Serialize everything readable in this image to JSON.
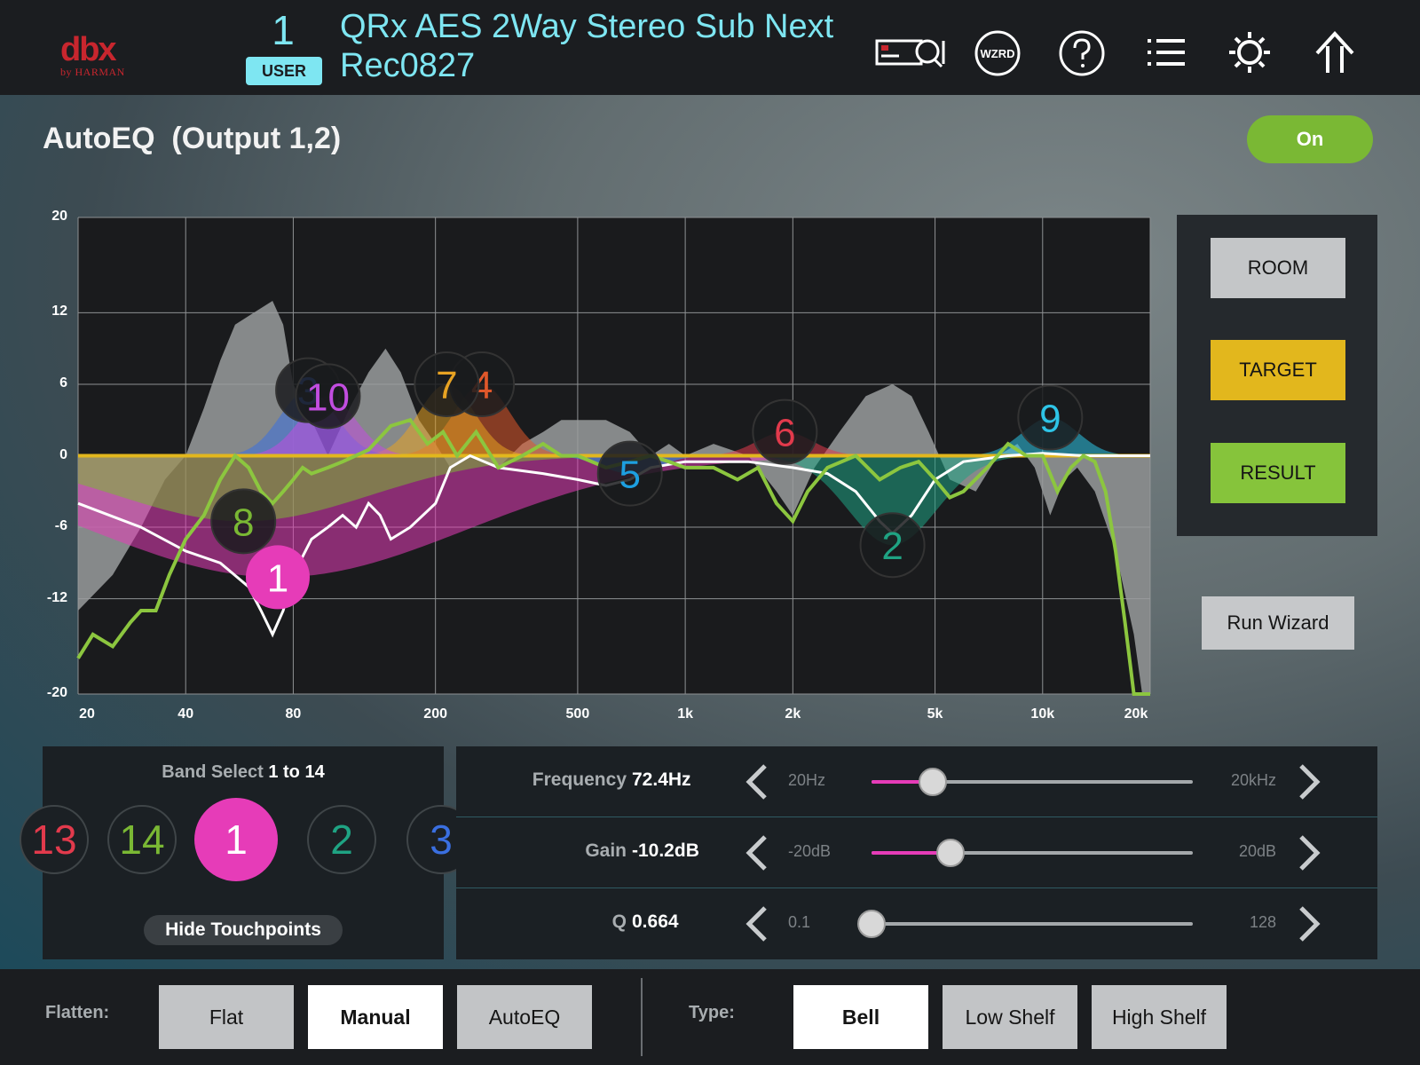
{
  "header": {
    "logo_text": "dbx",
    "logo_subtext": "by HARMAN",
    "preset_number": "1",
    "preset_bank": "USER",
    "preset_name_line1": "QRx AES 2Way Stereo Sub Next",
    "preset_name_line2": "Rec0827",
    "wizard_icon_text": "WZRD",
    "icons": [
      "device-icon",
      "wizard-icon",
      "help-icon",
      "list-icon",
      "settings-icon",
      "home-icon"
    ]
  },
  "module": {
    "title": "AutoEQ  (Output 1,2)",
    "toggle_label": "On"
  },
  "graph": {
    "y_labels": [
      "20",
      "12",
      "6",
      "0",
      "-6",
      "-12",
      "-20"
    ],
    "x_labels": [
      "20",
      "40",
      "80",
      "200",
      "500",
      "1k",
      "2k",
      "5k",
      "10k",
      "20k"
    ]
  },
  "chart_data": {
    "type": "line",
    "x_scale": "log",
    "xlim": [
      20,
      20000
    ],
    "ylim": [
      -20,
      20
    ],
    "y_ticks": [
      20,
      12,
      6,
      0,
      -6,
      -12,
      -20
    ],
    "x_ticks": [
      20,
      40,
      80,
      200,
      500,
      1000,
      2000,
      5000,
      10000,
      20000
    ],
    "target_level_db": 0,
    "bands": [
      {
        "id": 1,
        "freq": 72.4,
        "gain": -10.2,
        "color": "#e63cb8",
        "active": true
      },
      {
        "id": 2,
        "freq": 3800,
        "gain": -7.5,
        "color": "#1fa383"
      },
      {
        "id": 3,
        "freq": 88,
        "gain": 5.5,
        "color": "#3a6fe0"
      },
      {
        "id": 4,
        "freq": 270,
        "gain": 6,
        "color": "#e0572a"
      },
      {
        "id": 5,
        "freq": 700,
        "gain": -1.5,
        "color": "#1d9fe0"
      },
      {
        "id": 6,
        "freq": 1900,
        "gain": 2,
        "color": "#e23a4c"
      },
      {
        "id": 7,
        "freq": 215,
        "gain": 6,
        "color": "#e8a323"
      },
      {
        "id": 8,
        "freq": 58,
        "gain": -5.5,
        "color": "#7ab834"
      },
      {
        "id": 9,
        "freq": 10500,
        "gain": 3.2,
        "color": "#2ec4e6"
      },
      {
        "id": 10,
        "freq": 100,
        "gain": 5,
        "color": "#c24de0"
      }
    ],
    "series": [
      {
        "role": "room",
        "color": "#9a9c9e",
        "points": [
          [
            20,
            -13
          ],
          [
            25,
            -10
          ],
          [
            30,
            -6
          ],
          [
            35,
            -2
          ],
          [
            40,
            0
          ],
          [
            45,
            4
          ],
          [
            50,
            8
          ],
          [
            55,
            11
          ],
          [
            62,
            12
          ],
          [
            70,
            13
          ],
          [
            75,
            11
          ],
          [
            80,
            6
          ],
          [
            90,
            3
          ],
          [
            100,
            0
          ],
          [
            115,
            4
          ],
          [
            130,
            7
          ],
          [
            145,
            9
          ],
          [
            160,
            7
          ],
          [
            180,
            3
          ],
          [
            200,
            1
          ],
          [
            220,
            -1
          ],
          [
            250,
            0
          ],
          [
            300,
            -1
          ],
          [
            350,
            1
          ],
          [
            400,
            2
          ],
          [
            450,
            3
          ],
          [
            500,
            3
          ],
          [
            600,
            3
          ],
          [
            700,
            2
          ],
          [
            800,
            0
          ],
          [
            900,
            1
          ],
          [
            1000,
            0
          ],
          [
            1200,
            1
          ],
          [
            1500,
            0
          ],
          [
            1800,
            -3
          ],
          [
            2000,
            -5
          ],
          [
            2300,
            -1
          ],
          [
            2700,
            2
          ],
          [
            3200,
            5
          ],
          [
            3800,
            6
          ],
          [
            4300,
            5
          ],
          [
            4800,
            2
          ],
          [
            5500,
            -2
          ],
          [
            6500,
            -3
          ],
          [
            7500,
            0
          ],
          [
            8500,
            1
          ],
          [
            9500,
            -1
          ],
          [
            10500,
            -5
          ],
          [
            11500,
            -2
          ],
          [
            12500,
            -1
          ],
          [
            14000,
            -3
          ],
          [
            16000,
            -8
          ],
          [
            18000,
            -15
          ],
          [
            19000,
            -20
          ],
          [
            20000,
            -20
          ]
        ]
      },
      {
        "role": "target",
        "color": "#ffffff",
        "points": [
          [
            20,
            -4
          ],
          [
            30,
            -6
          ],
          [
            40,
            -8
          ],
          [
            50,
            -9
          ],
          [
            60,
            -11
          ],
          [
            65,
            -13
          ],
          [
            70,
            -15
          ],
          [
            75,
            -13
          ],
          [
            80,
            -10
          ],
          [
            90,
            -7
          ],
          [
            100,
            -6
          ],
          [
            110,
            -5
          ],
          [
            120,
            -6
          ],
          [
            130,
            -4
          ],
          [
            140,
            -5
          ],
          [
            150,
            -7
          ],
          [
            170,
            -6
          ],
          [
            200,
            -4
          ],
          [
            220,
            -1
          ],
          [
            250,
            0
          ],
          [
            300,
            -1
          ],
          [
            400,
            -1.5
          ],
          [
            500,
            -2
          ],
          [
            600,
            -2.5
          ],
          [
            700,
            -2
          ],
          [
            800,
            -1
          ],
          [
            1000,
            -0.5
          ],
          [
            1500,
            -0.5
          ],
          [
            2000,
            -1
          ],
          [
            2500,
            -1.5
          ],
          [
            3000,
            -3
          ],
          [
            3500,
            -5.5
          ],
          [
            3800,
            -6.5
          ],
          [
            4300,
            -5
          ],
          [
            5000,
            -2
          ],
          [
            6000,
            -0.5
          ],
          [
            8000,
            0
          ],
          [
            10000,
            0.2
          ],
          [
            13000,
            0
          ],
          [
            20000,
            0
          ]
        ]
      },
      {
        "role": "result",
        "color": "#8cc63f",
        "points": [
          [
            20,
            -17
          ],
          [
            22,
            -15
          ],
          [
            25,
            -16
          ],
          [
            28,
            -14
          ],
          [
            30,
            -13
          ],
          [
            33,
            -13
          ],
          [
            36,
            -10
          ],
          [
            40,
            -7
          ],
          [
            45,
            -5
          ],
          [
            50,
            -2
          ],
          [
            55,
            0
          ],
          [
            60,
            -1
          ],
          [
            65,
            -3
          ],
          [
            70,
            -4
          ],
          [
            75,
            -3
          ],
          [
            80,
            -2
          ],
          [
            85,
            -1
          ],
          [
            90,
            -1.5
          ],
          [
            100,
            -1
          ],
          [
            110,
            -0.5
          ],
          [
            130,
            0.5
          ],
          [
            150,
            2.5
          ],
          [
            170,
            3
          ],
          [
            190,
            1
          ],
          [
            210,
            2
          ],
          [
            230,
            0
          ],
          [
            260,
            2
          ],
          [
            300,
            -1
          ],
          [
            350,
            0
          ],
          [
            400,
            1
          ],
          [
            450,
            0
          ],
          [
            500,
            0
          ],
          [
            600,
            -1
          ],
          [
            700,
            -0.5
          ],
          [
            800,
            0
          ],
          [
            900,
            -0.5
          ],
          [
            1000,
            -1
          ],
          [
            1200,
            -1
          ],
          [
            1400,
            -2
          ],
          [
            1600,
            -1
          ],
          [
            1800,
            -4
          ],
          [
            2000,
            -5.5
          ],
          [
            2200,
            -3
          ],
          [
            2500,
            -1
          ],
          [
            3000,
            0
          ],
          [
            3500,
            -2
          ],
          [
            4000,
            -1
          ],
          [
            4500,
            -0.5
          ],
          [
            5000,
            -2
          ],
          [
            5500,
            -3.5
          ],
          [
            6000,
            -3
          ],
          [
            7000,
            -1
          ],
          [
            8000,
            1
          ],
          [
            9000,
            0
          ],
          [
            10000,
            0
          ],
          [
            11000,
            -3
          ],
          [
            12000,
            -1
          ],
          [
            13000,
            0
          ],
          [
            14000,
            -0.5
          ],
          [
            15000,
            -3
          ],
          [
            16000,
            -8
          ],
          [
            17000,
            -14
          ],
          [
            18000,
            -20
          ],
          [
            19500,
            -20
          ],
          [
            20000,
            -20
          ]
        ]
      }
    ]
  },
  "views": {
    "room": "ROOM",
    "target": "TARGET",
    "result": "RESULT",
    "run_wizard": "Run Wizard"
  },
  "band_select": {
    "title_prefix": "Band Select ",
    "title_range": "1 to 14",
    "chips": [
      {
        "label": "13",
        "color": "#e23a4c"
      },
      {
        "label": "14",
        "color": "#7ab834"
      },
      {
        "label": "1",
        "color": "#ffffff"
      },
      {
        "label": "2",
        "color": "#1fa383"
      },
      {
        "label": "3",
        "color": "#3a6fe0"
      }
    ],
    "hide_touchpoints": "Hide Touchpoints"
  },
  "params": {
    "frequency": {
      "label": "Frequency",
      "value": "72.4Hz",
      "min": "20Hz",
      "max": "20kHz",
      "position": 0.19
    },
    "gain": {
      "label": "Gain",
      "value": "-10.2dB",
      "min": "-20dB",
      "max": "20dB",
      "position": 0.245
    },
    "q": {
      "label": "Q",
      "value": "0.664",
      "min": "0.1",
      "max": "128",
      "position": 0
    }
  },
  "bottom": {
    "flatten_label": "Flatten:",
    "flatten_options": [
      "Flat",
      "Manual",
      "AutoEQ"
    ],
    "flatten_selected": "Manual",
    "type_label": "Type:",
    "type_options": [
      "Bell",
      "Low Shelf",
      "High Shelf"
    ],
    "type_selected": "Bell"
  }
}
